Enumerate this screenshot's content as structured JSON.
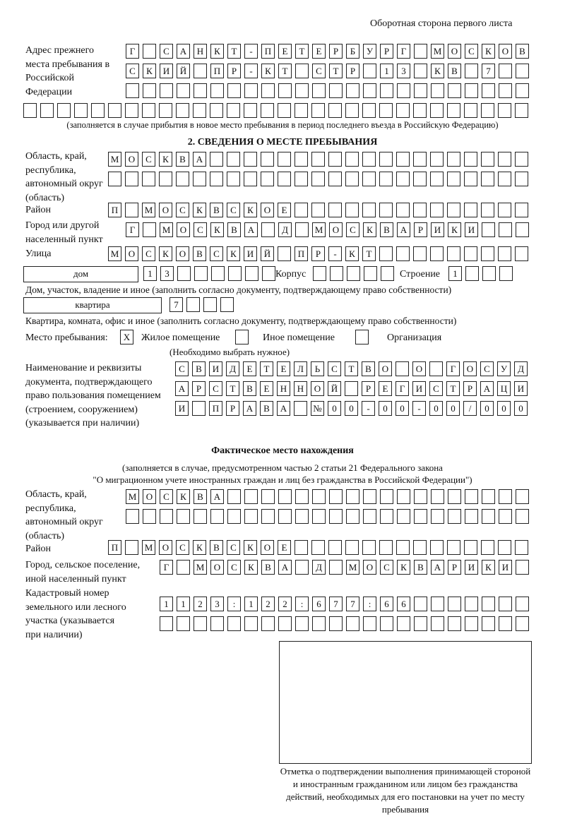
{
  "header": "Оборотная сторона первого листа",
  "prev_address": {
    "label": "Адрес прежнего места пребывания в Российской Федерации",
    "rows": [
      [
        "Г",
        "",
        "С",
        "А",
        "Н",
        "К",
        "Т",
        "-",
        "П",
        "Е",
        "Т",
        "Е",
        "Р",
        "Б",
        "У",
        "Р",
        "Г",
        "",
        "М",
        "О",
        "С",
        "К",
        "О",
        "В"
      ],
      [
        "С",
        "К",
        "И",
        "Й",
        "",
        "П",
        "Р",
        "-",
        "К",
        "Т",
        "",
        "С",
        "Т",
        "Р",
        "",
        "1",
        "3",
        "",
        "К",
        "В",
        "",
        "7",
        "",
        ""
      ],
      [
        "",
        "",
        "",
        "",
        "",
        "",
        "",
        "",
        "",
        "",
        "",
        "",
        "",
        "",
        "",
        "",
        "",
        "",
        "",
        "",
        "",
        "",
        "",
        ""
      ],
      [
        "",
        "",
        "",
        "",
        "",
        "",
        "",
        "",
        "",
        "",
        "",
        "",
        "",
        "",
        "",
        "",
        "",
        "",
        "",
        "",
        "",
        "",
        "",
        "",
        "",
        "",
        "",
        "",
        "",
        ""
      ]
    ],
    "note": "(заполняется в случае прибытия в новое место пребывания в период последнего въезда в Российскую Федерацию)"
  },
  "section2": {
    "title": "2. СВЕДЕНИЯ О МЕСТЕ ПРЕБЫВАНИЯ",
    "region_label": "Область, край, республика, автономный округ (область)",
    "region_rows": [
      [
        "М",
        "О",
        "С",
        "К",
        "В",
        "А",
        "",
        "",
        "",
        "",
        "",
        "",
        "",
        "",
        "",
        "",
        "",
        "",
        "",
        "",
        "",
        "",
        "",
        "",
        ""
      ],
      [
        "",
        "",
        "",
        "",
        "",
        "",
        "",
        "",
        "",
        "",
        "",
        "",
        "",
        "",
        "",
        "",
        "",
        "",
        "",
        "",
        "",
        "",
        "",
        "",
        ""
      ]
    ],
    "district_label": "Район",
    "district": [
      "П",
      "",
      "М",
      "О",
      "С",
      "К",
      "В",
      "С",
      "К",
      "О",
      "Е",
      "",
      "",
      "",
      "",
      "",
      "",
      "",
      "",
      "",
      "",
      "",
      "",
      "",
      ""
    ],
    "city_label": "Город или другой населенный пункт",
    "city": [
      "Г",
      "",
      "М",
      "О",
      "С",
      "К",
      "В",
      "А",
      "",
      "Д",
      "",
      "М",
      "О",
      "С",
      "К",
      "В",
      "А",
      "Р",
      "И",
      "К",
      "И",
      "",
      "",
      ""
    ],
    "street_label": "Улица",
    "street": [
      "М",
      "О",
      "С",
      "К",
      "О",
      "В",
      "С",
      "К",
      "И",
      "Й",
      "",
      "П",
      "Р",
      "-",
      "К",
      "Т",
      "",
      "",
      "",
      "",
      "",
      "",
      "",
      "",
      ""
    ],
    "house_type": "дом",
    "house": [
      "1",
      "3",
      "",
      "",
      "",
      "",
      "",
      ""
    ],
    "korpus_label": "Корпус",
    "korpus": [
      "",
      "",
      "",
      "",
      ""
    ],
    "building_label": "Строение",
    "building": [
      "1",
      "",
      "",
      ""
    ],
    "house_note": "Дом, участок, владение и иное (заполнить согласно документу, подтверждающему право собственности)",
    "flat_type": "квартира",
    "flat": [
      "7",
      "",
      "",
      ""
    ],
    "flat_note": "Квартира, комната, офис и иное (заполнить согласно документу, подтверждающему право собственности)",
    "stay_label": "Место пребывания:",
    "stay_options": [
      {
        "label": "Жилое помещение",
        "mark": "X"
      },
      {
        "label": "Иное помещение",
        "mark": ""
      },
      {
        "label": "Организация",
        "mark": ""
      }
    ],
    "stay_note": "(Необходимо выбрать нужное)",
    "doc_label": "Наименование и реквизиты документа, подтверждающего право пользования помещением (строением, сооружением) (указывается при наличии)",
    "doc_rows": [
      [
        "С",
        "В",
        "И",
        "Д",
        "Е",
        "Т",
        "Е",
        "Л",
        "Ь",
        "С",
        "Т",
        "В",
        "О",
        "",
        "О",
        "",
        "Г",
        "О",
        "С",
        "У",
        "Д"
      ],
      [
        "А",
        "Р",
        "С",
        "Т",
        "В",
        "Е",
        "Н",
        "Н",
        "О",
        "Й",
        "",
        "Р",
        "Е",
        "Г",
        "И",
        "С",
        "Т",
        "Р",
        "А",
        "Ц",
        "И"
      ],
      [
        "И",
        "",
        "П",
        "Р",
        "А",
        "В",
        "А",
        "",
        "№",
        "0",
        "0",
        "-",
        "0",
        "0",
        "-",
        "0",
        "0",
        "/",
        "0",
        "0",
        "0"
      ]
    ]
  },
  "actual": {
    "title": "Фактическое место нахождения",
    "note1": "(заполняется в случае, предусмотренном частью 2 статьи 21 Федерального закона",
    "note2": "\"О миграционном учете иностранных граждан и лиц без гражданства в Российской Федерации\")",
    "region_label": "Область, край, республика, автономный округ (область)",
    "region_rows": [
      [
        "М",
        "О",
        "С",
        "К",
        "В",
        "А",
        "",
        "",
        "",
        "",
        "",
        "",
        "",
        "",
        "",
        "",
        "",
        "",
        "",
        "",
        "",
        "",
        "",
        ""
      ],
      [
        "",
        "",
        "",
        "",
        "",
        "",
        "",
        "",
        "",
        "",
        "",
        "",
        "",
        "",
        "",
        "",
        "",
        "",
        "",
        "",
        "",
        "",
        "",
        ""
      ]
    ],
    "district_label": "Район",
    "district": [
      "П",
      "",
      "М",
      "О",
      "С",
      "К",
      "В",
      "С",
      "К",
      "О",
      "Е",
      "",
      "",
      "",
      "",
      "",
      "",
      "",
      "",
      "",
      "",
      "",
      "",
      "",
      ""
    ],
    "city_label": "Город, сельское поселение, иной населенный пункт",
    "city": [
      "Г",
      "",
      "М",
      "О",
      "С",
      "К",
      "В",
      "А",
      "",
      "Д",
      "",
      "М",
      "О",
      "С",
      "К",
      "В",
      "А",
      "Р",
      "И",
      "К",
      "И",
      ""
    ],
    "cadastral_label": "Кадастровый номер земельного или лесного участка (указывается при наличии)",
    "cadastral_rows": [
      [
        "1",
        "1",
        "2",
        "3",
        ":",
        "1",
        "2",
        "2",
        ":",
        "6",
        "7",
        "7",
        ":",
        "6",
        "6",
        "",
        "",
        "",
        "",
        "",
        "",
        ""
      ],
      [
        "",
        "",
        "",
        "",
        "",
        "",
        "",
        "",
        "",
        "",
        "",
        "",
        "",
        "",
        "",
        "",
        "",
        "",
        "",
        "",
        "",
        ""
      ]
    ]
  },
  "stamp_caption": "Отметка о подтверждении выполнения принимающей стороной и иностранным гражданином или лицом без гражданства действий, необходимых для его постановки на учет по месту пребывания"
}
